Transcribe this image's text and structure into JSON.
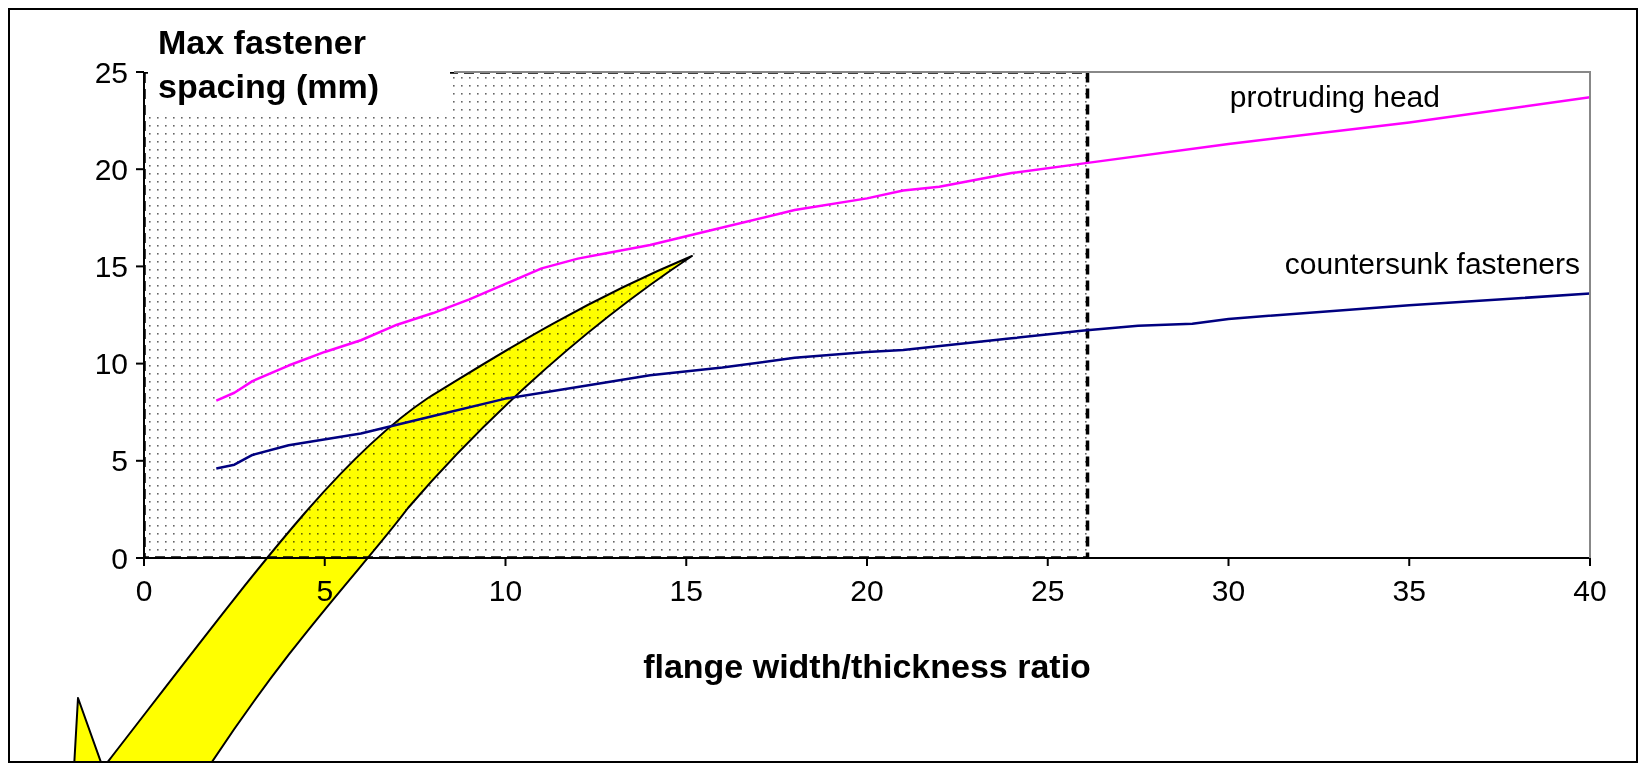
{
  "chart_data": {
    "type": "line",
    "ylabel": "Max fastener spacing (mm)",
    "xlabel": "flange width/thickness ratio",
    "xlim": [
      0,
      40
    ],
    "xticks": [
      0,
      5,
      10,
      15,
      20,
      25,
      30,
      35,
      40
    ],
    "ylim": [
      0,
      25
    ],
    "yticks": [
      0,
      5,
      10,
      15,
      20,
      25
    ],
    "grid": false,
    "legend": false,
    "marker": "none",
    "line_style": "solid",
    "bands": [
      {
        "axis": "x",
        "from": 0,
        "to": 26.1,
        "color": "#000000"
      }
    ],
    "series": [
      {
        "name": "protruding head",
        "color": "#ff00ff",
        "x": [
          2,
          2.5,
          3,
          4,
          5,
          6,
          7,
          8,
          9,
          10,
          11,
          12,
          14,
          16,
          18,
          20,
          21,
          22,
          24,
          26,
          30,
          35,
          40
        ],
        "values": [
          8.1,
          8.5,
          9.1,
          9.9,
          10.6,
          11.2,
          12.0,
          12.6,
          13.3,
          14.1,
          14.9,
          15.4,
          16.1,
          17.0,
          17.9,
          18.5,
          18.9,
          19.1,
          19.8,
          20.3,
          21.3,
          22.4,
          23.7
        ]
      },
      {
        "name": "countersunk fasteners",
        "color": "#000080",
        "x": [
          2,
          2.5,
          3,
          4,
          6,
          8,
          10,
          12,
          14,
          16,
          18,
          20,
          21,
          24,
          26,
          27.5,
          29,
          30,
          35,
          40
        ],
        "values": [
          4.6,
          4.8,
          5.3,
          5.8,
          6.4,
          7.3,
          8.2,
          8.8,
          9.4,
          9.8,
          10.3,
          10.6,
          10.7,
          11.3,
          11.7,
          11.95,
          12.05,
          12.3,
          13.0,
          13.6
        ]
      }
    ]
  }
}
